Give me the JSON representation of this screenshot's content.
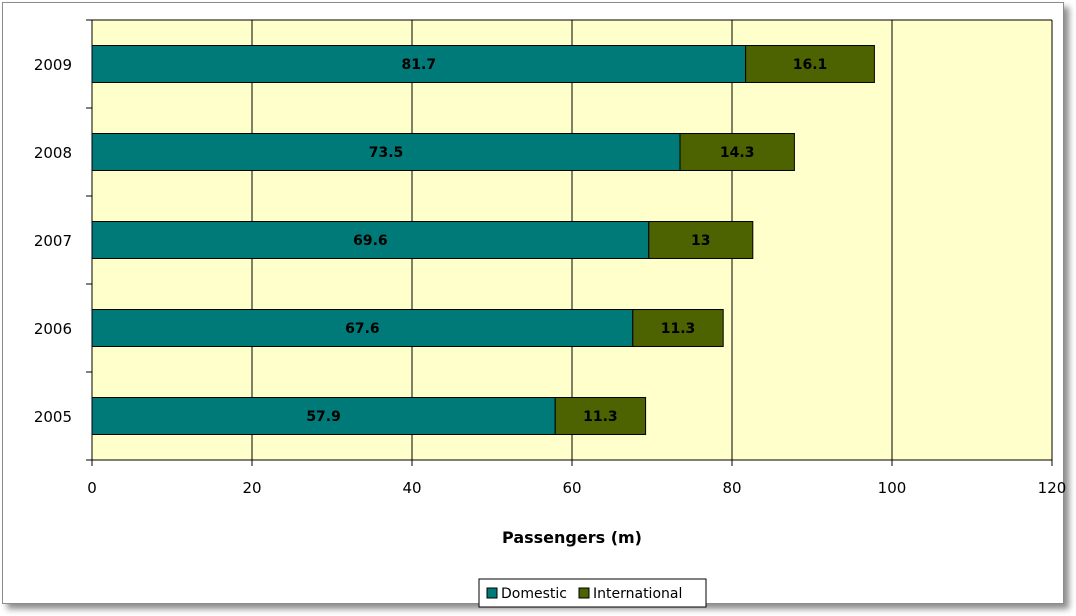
{
  "chart_data": {
    "type": "bar",
    "orientation": "horizontal",
    "stacked": true,
    "categories": [
      "2005",
      "2006",
      "2007",
      "2008",
      "2009"
    ],
    "series": [
      {
        "name": "Domestic",
        "values": [
          57.9,
          67.6,
          69.6,
          73.5,
          81.7
        ],
        "color": "#007a78"
      },
      {
        "name": "International",
        "values": [
          11.3,
          11.3,
          13,
          14.3,
          16.1
        ],
        "color": "#4d6200"
      }
    ],
    "title": "",
    "xlabel": "Passengers (m)",
    "ylabel": "",
    "xlim": [
      0,
      120
    ],
    "xticks": [
      "0",
      "20",
      "40",
      "60",
      "80",
      "100",
      "120"
    ],
    "grid": "vertical",
    "plot_background": "#ffffcc",
    "legend_position": "bottom"
  }
}
